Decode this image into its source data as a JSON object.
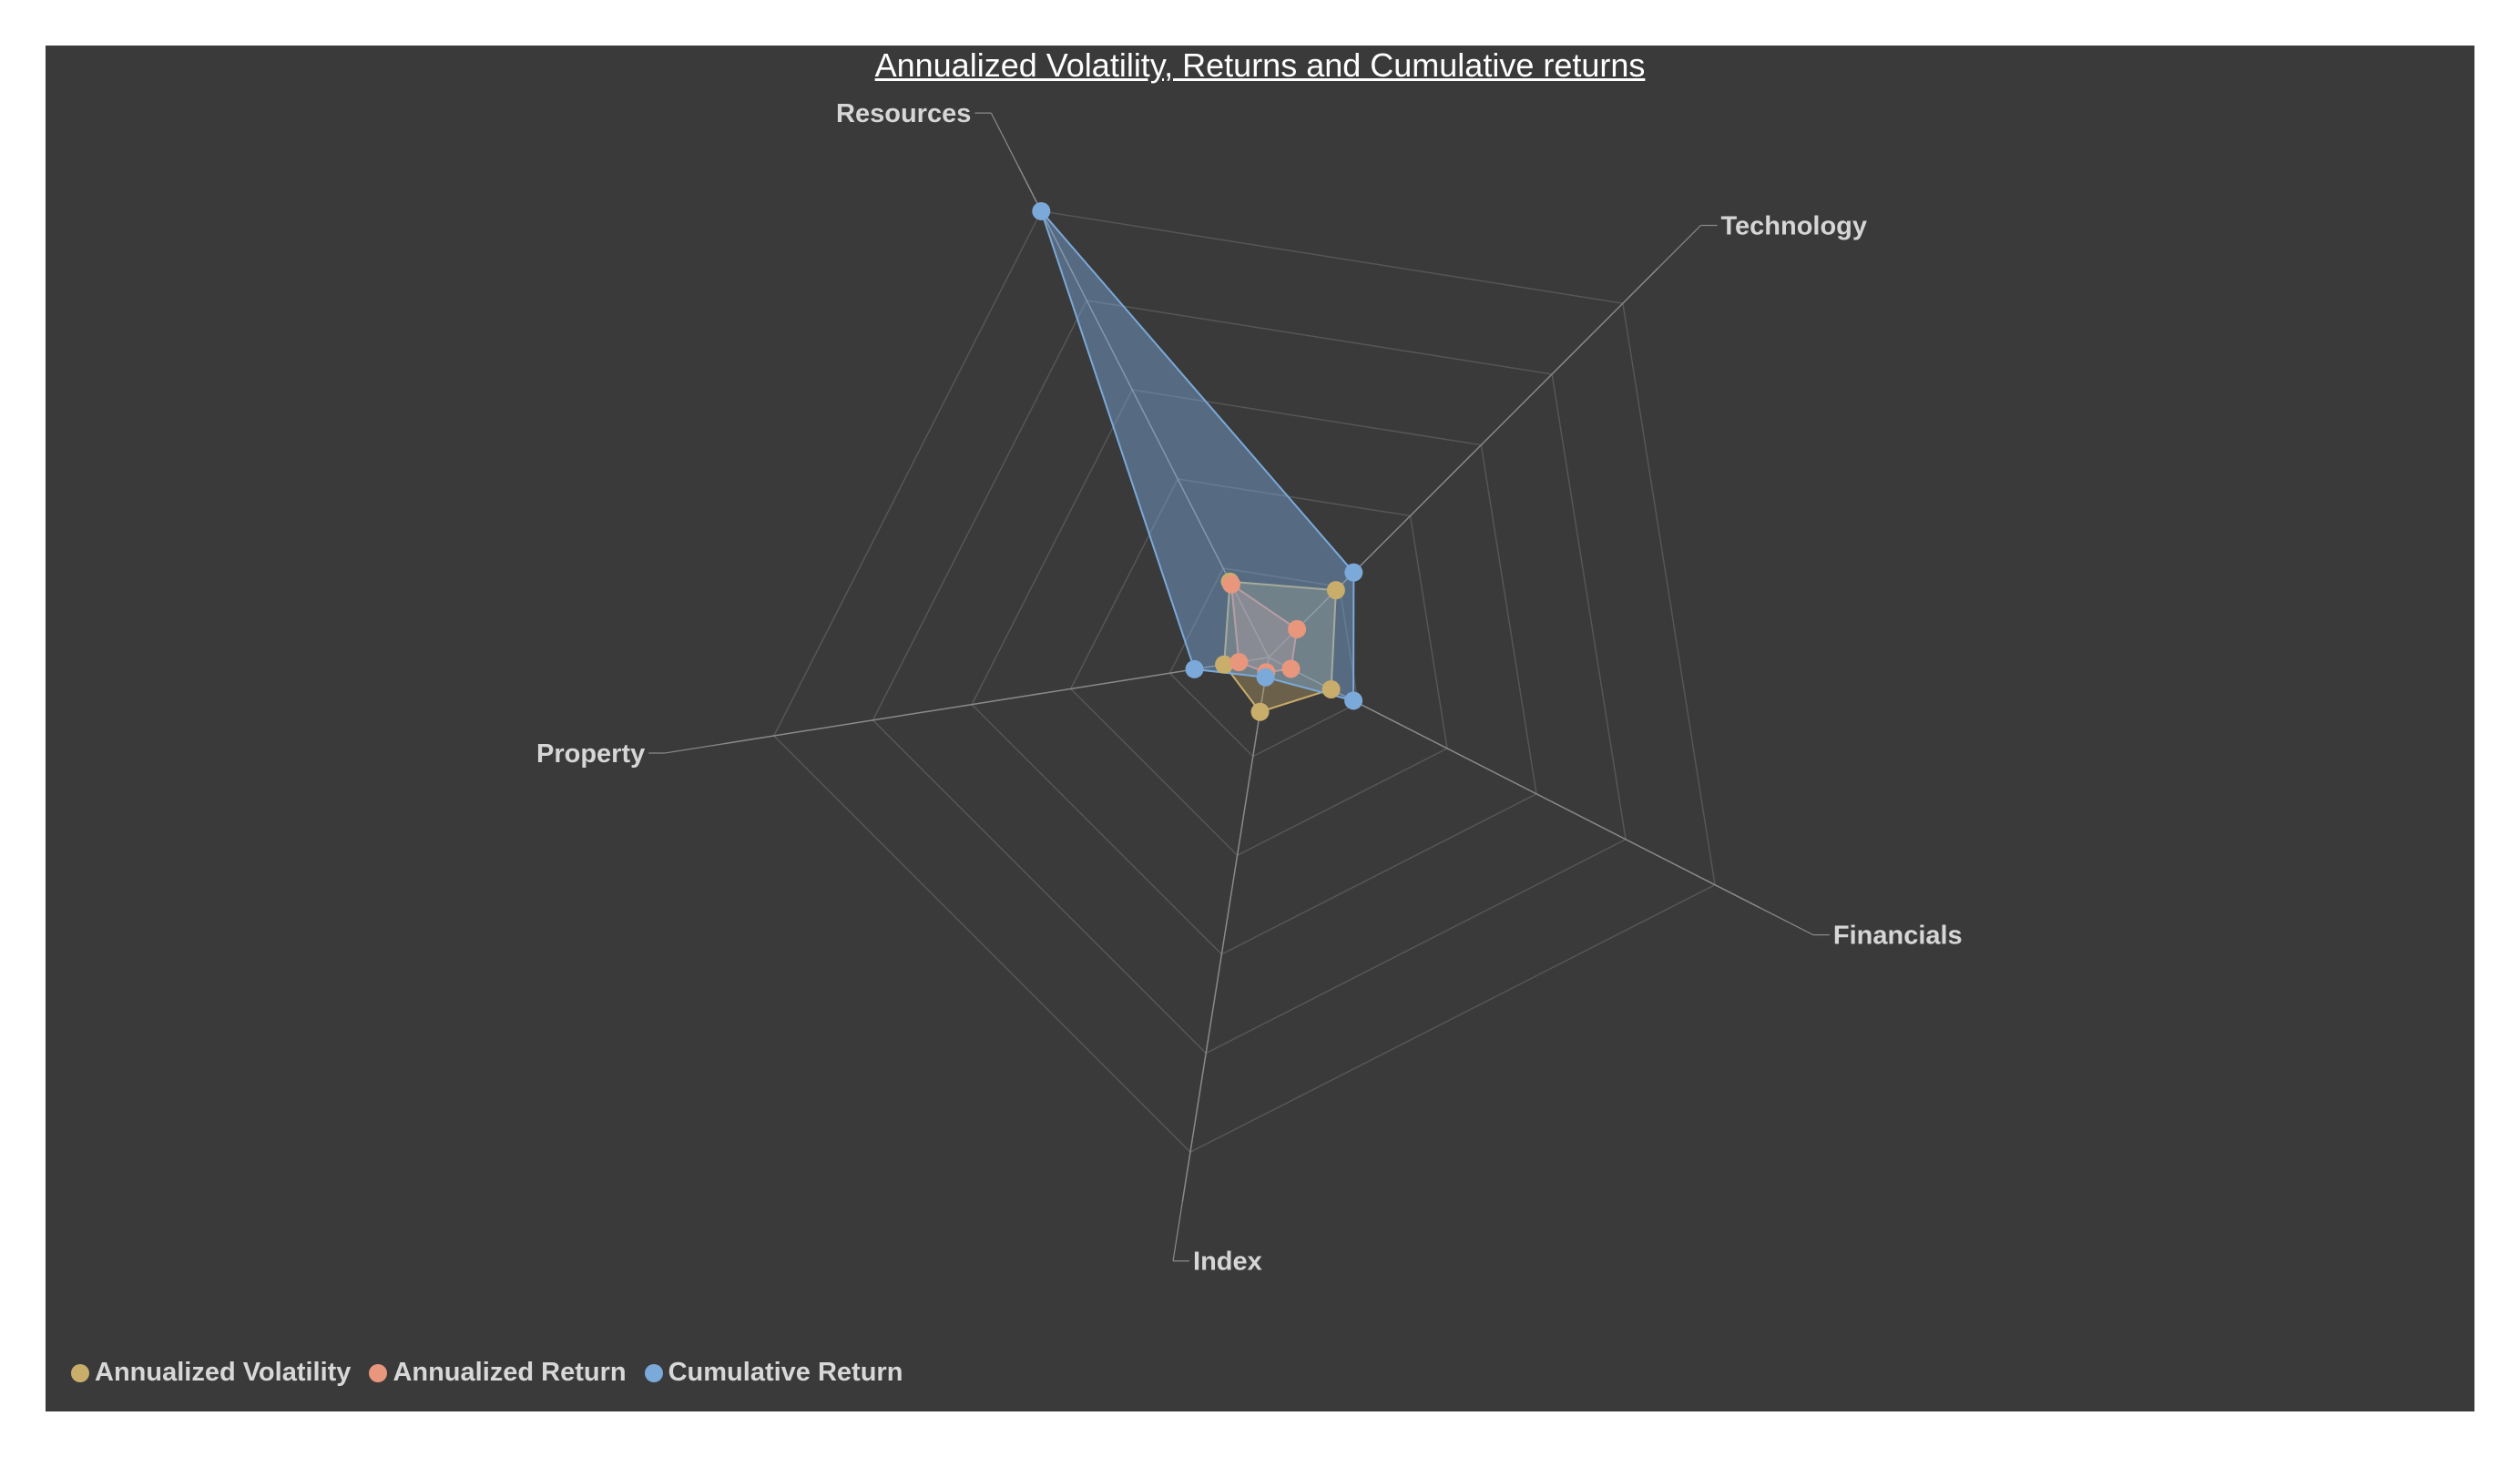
{
  "chart_data": {
    "type": "radar",
    "title": "Annualized Volatility, Returns and Cumulative returns",
    "categories": [
      "Technology",
      "Financials",
      "Index",
      "Property",
      "Resources"
    ],
    "rlim": [
      0,
      5
    ],
    "grid_rings": 5,
    "grid": true,
    "legend_position": "bottom-left",
    "series": [
      {
        "name": "Annualized Volatility",
        "color": "#c9ad6b",
        "values": [
          0.95,
          0.7,
          0.55,
          0.45,
          0.85
        ]
      },
      {
        "name": "Annualized Return",
        "color": "#e8967c",
        "values": [
          0.4,
          0.25,
          0.15,
          0.3,
          0.82
        ]
      },
      {
        "name": "Cumulative Return",
        "color": "#7ba9d9",
        "values": [
          1.2,
          0.95,
          0.2,
          0.75,
          5.0
        ]
      }
    ]
  },
  "legend": {
    "items": [
      {
        "label": "Annualized Volatility",
        "color": "#c9ad6b"
      },
      {
        "label": "Annualized Return",
        "color": "#e8967c"
      },
      {
        "label": "Cumulative Return",
        "color": "#7ba9d9"
      }
    ]
  },
  "colors": {
    "background": "#3a3a3a",
    "grid": "#565656",
    "axis": "#8a8a8a",
    "text": "#d6d6d6"
  }
}
